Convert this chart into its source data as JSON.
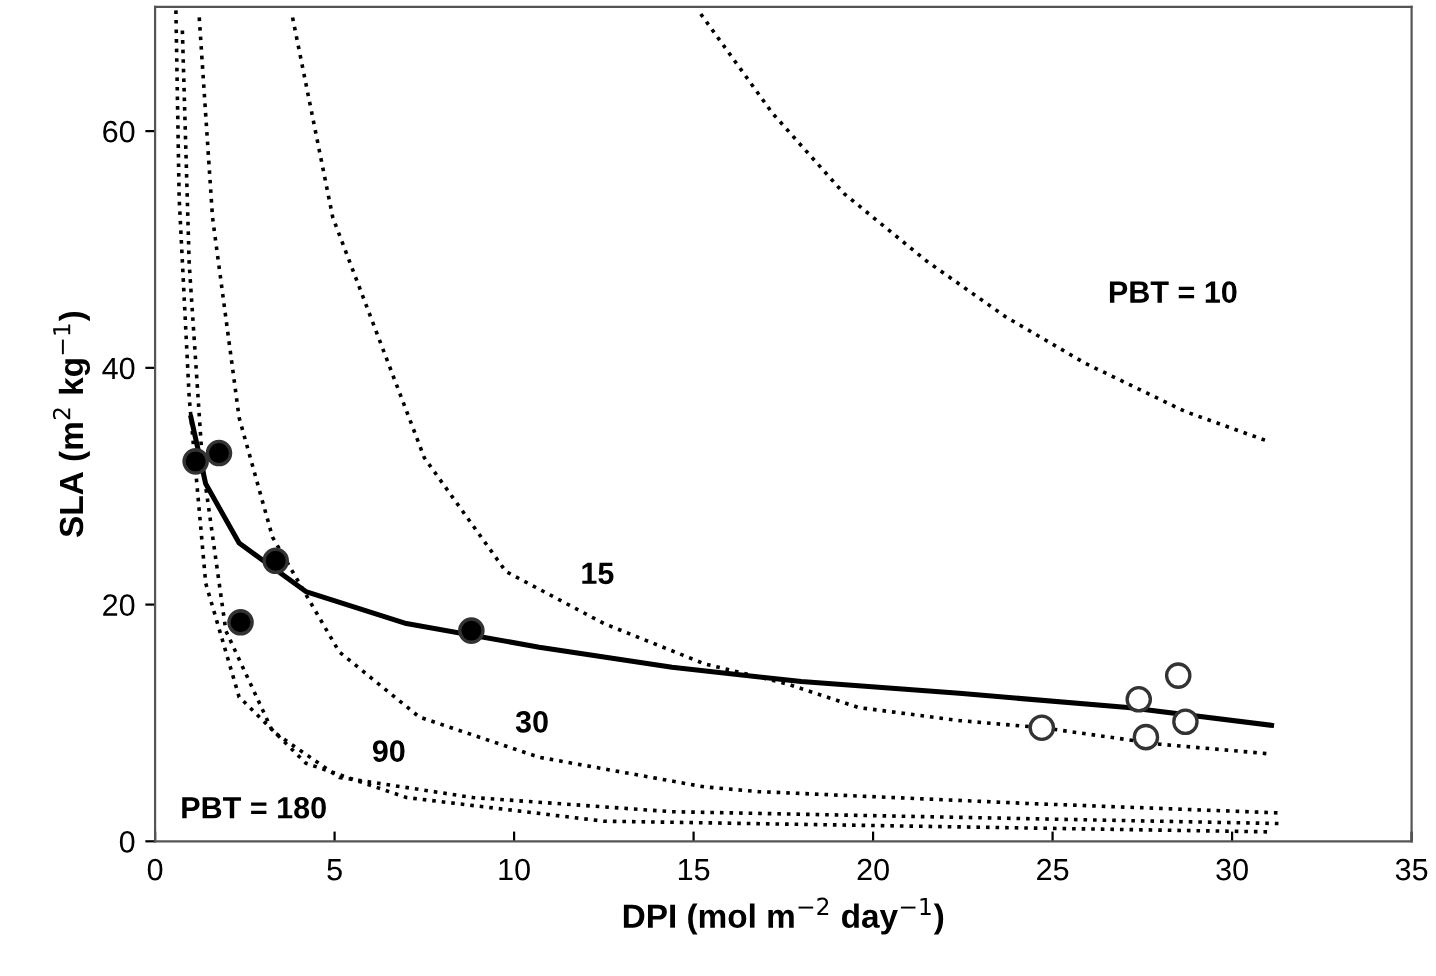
{
  "chart_data": {
    "type": "line",
    "xlabel": "DPI (mol m$^{−2}$ day$^{−1}$)",
    "ylabel": "SLA (m$^{2}$ kg$^{−1}$)",
    "xlim": [
      0,
      35
    ],
    "ylim": [
      0,
      70.5
    ],
    "xticks": [
      0,
      5,
      10,
      15,
      20,
      25,
      30,
      35
    ],
    "yticks": [
      0,
      20,
      40,
      60
    ],
    "grid": false,
    "legend": false,
    "series": [
      {
        "line_style": "dotted",
        "marker": "none",
        "color": "#000000",
        "x": [
          15.2,
          17.2,
          19.2,
          21.5,
          23.7,
          25.9,
          28.7,
          31.0
        ],
        "values": [
          69.9,
          61.5,
          54.7,
          49.0,
          44.3,
          40.4,
          36.3,
          33.8
        ]
      },
      {
        "line_style": "dotted",
        "marker": "none",
        "color": "#000000",
        "x": [
          3.83,
          4.95,
          7.5,
          9.77,
          12.5,
          15.3,
          17.6,
          19.6,
          22.4,
          24.7,
          28.0,
          31.0
        ],
        "values": [
          69.6,
          52.7,
          32.4,
          22.8,
          18.4,
          15.0,
          13.3,
          11.3,
          10.2,
          9.6,
          8.2,
          7.4
        ]
      },
      {
        "line_style": "dotted",
        "marker": "none",
        "color": "#000000",
        "x": [
          1.23,
          1.6,
          2.34,
          3.27,
          5.13,
          7.36,
          10.7,
          15.3,
          16.8,
          24.3,
          31.3
        ],
        "values": [
          69.6,
          52.7,
          35.8,
          25.7,
          16.0,
          10.5,
          7.1,
          4.6,
          4.2,
          3.2,
          2.4
        ]
      },
      {
        "line_style": "dotted",
        "marker": "none",
        "color": "#000000",
        "x": [
          0.76,
          0.95,
          1.32,
          1.97,
          3.27,
          5.13,
          8.85,
          14.4,
          31.3
        ],
        "values": [
          68.5,
          48.8,
          31.9,
          17.8,
          9.3,
          5.4,
          3.7,
          2.5,
          1.5
        ]
      },
      {
        "line_style": "dotted",
        "marker": "none",
        "color": "#000000",
        "x": [
          0.58,
          0.67,
          0.95,
          1.41,
          2.34,
          4.2,
          7.0,
          12.5,
          31.0
        ],
        "values": [
          70.2,
          54.4,
          37.5,
          21.8,
          12.2,
          6.6,
          3.7,
          1.7,
          0.8
        ]
      },
      {
        "line_style": "solid",
        "marker": "none",
        "color": "#000000",
        "x": [
          1.0,
          1.41,
          2.34,
          4.2,
          7.0,
          10.7,
          14.4,
          18.0,
          22.4,
          27.1,
          31.1
        ],
        "values": [
          35.8,
          30.2,
          25.2,
          21.1,
          18.4,
          16.4,
          14.7,
          13.5,
          12.5,
          11.3,
          9.8
        ]
      },
      {
        "type": "scatter",
        "marker": "circle",
        "color": "#000000",
        "x": [
          1.13,
          1.78,
          3.36,
          2.38,
          8.81
        ],
        "values": [
          32.1,
          32.8,
          23.7,
          18.5,
          17.8
        ]
      },
      {
        "type": "scatter",
        "marker": "circle",
        "color": "#ffffff",
        "x": [
          24.7,
          27.4,
          27.6,
          28.5,
          28.7
        ],
        "values": [
          9.6,
          12.0,
          8.8,
          14.0,
          10.1
        ]
      }
    ],
    "annotations": [
      "PBT = 10",
      "15",
      "30",
      "90",
      "PBT = 180"
    ]
  }
}
